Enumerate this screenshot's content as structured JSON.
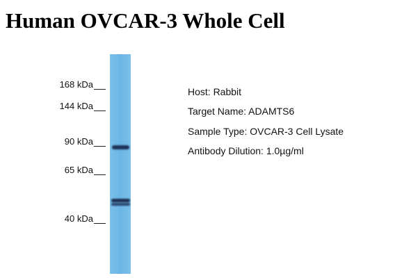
{
  "header": {
    "title": "Human OVCAR-3 Whole Cell"
  },
  "markers": [
    {
      "label": "168 kDa"
    },
    {
      "label": "144 kDa"
    },
    {
      "label": "90 kDa"
    },
    {
      "label": "65 kDa"
    },
    {
      "label": "40 kDa"
    }
  ],
  "info": [
    "Host: Rabbit",
    "Target Name: ADAMTS6",
    "Sample Type: OVCAR-3 Cell Lysate",
    "Antibody Dilution: 1.0µg/ml"
  ]
}
